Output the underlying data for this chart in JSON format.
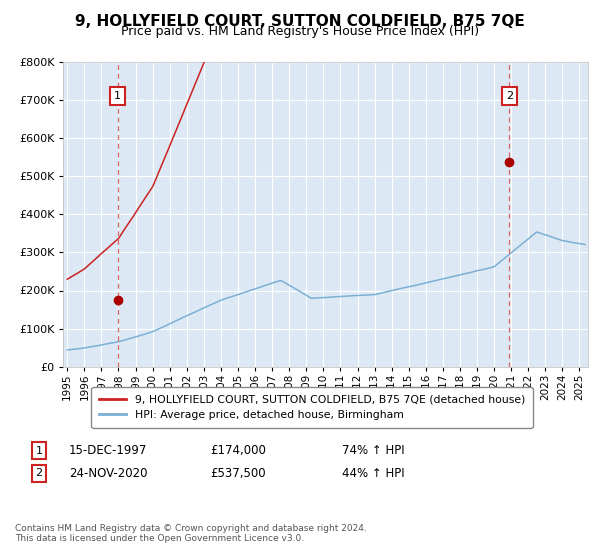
{
  "title": "9, HOLLYFIELD COURT, SUTTON COLDFIELD, B75 7QE",
  "subtitle": "Price paid vs. HM Land Registry's House Price Index (HPI)",
  "ylim": [
    0,
    800000
  ],
  "yticks": [
    0,
    100000,
    200000,
    300000,
    400000,
    500000,
    600000,
    700000,
    800000
  ],
  "xmin": 1994.75,
  "xmax": 2025.5,
  "sale1_date": 1997.96,
  "sale1_price": 174000,
  "sale1_label": "1",
  "sale1_date_str": "15-DEC-1997",
  "sale1_price_str": "£174,000",
  "sale1_hpi_str": "74% ↑ HPI",
  "sale2_date": 2020.9,
  "sale2_price": 537500,
  "sale2_label": "2",
  "sale2_date_str": "24-NOV-2020",
  "sale2_price_str": "£537,500",
  "sale2_hpi_str": "44% ↑ HPI",
  "hpi_line_color": "#7bafd4",
  "property_line_color": "#cc2222",
  "marker_color": "#aa0000",
  "dashed_line_color": "#dd6666",
  "legend_label_property": "9, HOLLYFIELD COURT, SUTTON COLDFIELD, B75 7QE (detached house)",
  "legend_label_hpi": "HPI: Average price, detached house, Birmingham",
  "footer": "Contains HM Land Registry data © Crown copyright and database right 2024.\nThis data is licensed under the Open Government Licence v3.0.",
  "plot_bg_color": "#dce9f5",
  "title_fontsize": 11,
  "subtitle_fontsize": 9,
  "tick_fontsize": 7.5
}
